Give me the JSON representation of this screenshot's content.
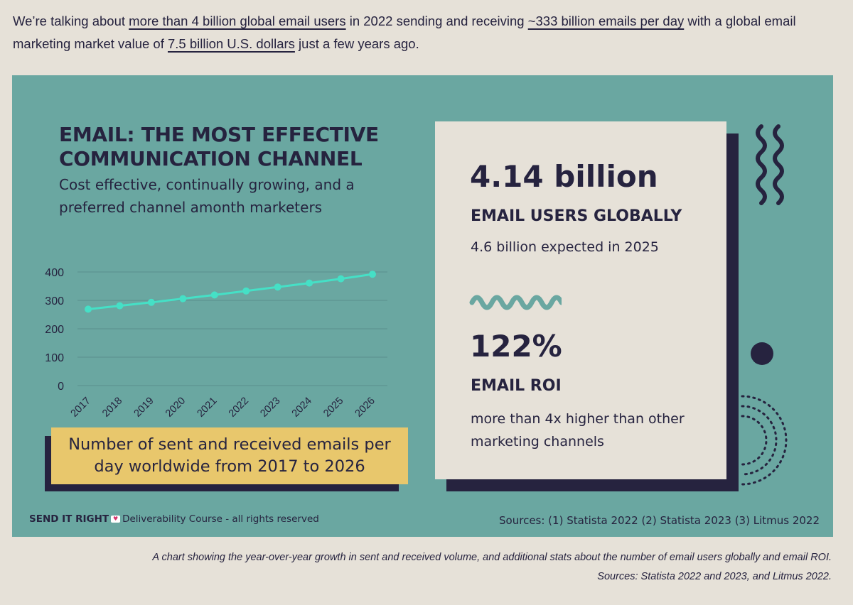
{
  "intro": {
    "part1": "We’re talking about ",
    "link1": "more than 4 billion global email users",
    "part2": " in 2022 sending and receiving ",
    "link2": "~333 billion emails per day",
    "part3": " with a global email marketing market value of ",
    "link3": "7.5 billion U.S. dollars",
    "part4": " just a few years ago."
  },
  "infographic": {
    "title_line1": "EMAIL: THE MOST EFFECTIVE",
    "title_line2": "COMMUNICATION CHANNEL",
    "subtitle": "Cost effective, continually growing, and a preferred channel amonth marketers",
    "chart_caption": "Number of sent and received emails per day worldwide from 2017 to 2026",
    "stats": [
      {
        "value": "4.14 billion",
        "label": "EMAIL USERS GLOBALLY",
        "desc": "4.6 billion expected in 2025"
      },
      {
        "value": "122%",
        "label": "EMAIL ROI",
        "desc": "more than 4x higher than other marketing channels"
      }
    ],
    "footer_brand": "SEND IT RIGHT",
    "footer_heart_icon": "envelope-heart-icon",
    "footer_text": "Deliverability Course - all rights reserved",
    "sources": "Sources: (1) Statista 2022 (2) Statista 2023 (3) Litmus 2022",
    "colors": {
      "background": "#6aa7a1",
      "navy": "#26233f",
      "line": "#45e0c6",
      "caption": "#e8c76c",
      "panel": "#e6e1d8",
      "squiggle": "#6aa7a1"
    }
  },
  "chart_data": {
    "type": "line",
    "title": "Number of sent and received emails per day worldwide from 2017 to 2026",
    "categories": [
      "2017",
      "2018",
      "2019",
      "2020",
      "2021",
      "2022",
      "2023",
      "2024",
      "2025",
      "2026"
    ],
    "values": [
      269,
      281,
      293,
      306,
      319,
      333,
      347,
      361,
      376,
      392
    ],
    "yticks": [
      0,
      100,
      200,
      300,
      400
    ],
    "ylim": [
      0,
      400
    ],
    "xlabel": "",
    "ylabel": "",
    "grid": true,
    "legend": "none"
  },
  "figure_caption": {
    "line1": "A chart showing the year-over-year growth in sent and received volume, and additional stats about the number of email users globally and email ROI.",
    "line2": "Sources: Statista 2022 and 2023, and Litmus 2022."
  }
}
